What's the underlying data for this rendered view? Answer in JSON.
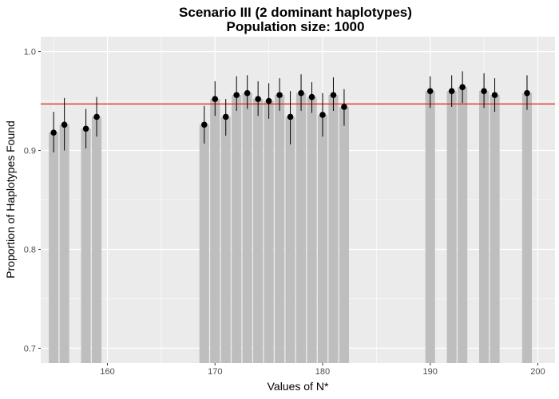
{
  "chart_data": {
    "type": "bar",
    "title": "Scenario III (2 dominant haplotypes)",
    "subtitle": "Population size: 1000",
    "xlabel": "Values of N*",
    "ylabel": "Proportion of Haplotypes Found",
    "xlim": [
      153.8,
      201.6
    ],
    "ylim": [
      0.685,
      1.015
    ],
    "xticks": [
      160,
      170,
      180,
      190,
      200
    ],
    "xtick_labels": [
      "160",
      "170",
      "180",
      "190",
      "200"
    ],
    "yticks": [
      0.7,
      0.8,
      0.9,
      1.0
    ],
    "ytick_labels": [
      "0.7",
      "0.8",
      "0.9",
      "1.0"
    ],
    "reference_line": {
      "y": 0.947,
      "color": "#e8251e"
    },
    "grid": true,
    "colors": {
      "panel": "#ebebeb",
      "grid": "#ffffff",
      "bar": "#bebebe",
      "point": "#000000"
    },
    "x": [
      155,
      156,
      158,
      159,
      169,
      170,
      171,
      172,
      173,
      174,
      175,
      176,
      177,
      178,
      179,
      180,
      181,
      182,
      190,
      192,
      193,
      195,
      196,
      199
    ],
    "values": [
      0.918,
      0.926,
      0.922,
      0.934,
      0.926,
      0.952,
      0.934,
      0.956,
      0.958,
      0.952,
      0.95,
      0.956,
      0.934,
      0.958,
      0.954,
      0.936,
      0.956,
      0.944,
      0.96,
      0.96,
      0.964,
      0.96,
      0.956,
      0.958
    ],
    "lower": [
      0.898,
      0.9,
      0.902,
      0.914,
      0.907,
      0.935,
      0.915,
      0.94,
      0.942,
      0.935,
      0.932,
      0.94,
      0.906,
      0.94,
      0.938,
      0.914,
      0.94,
      0.925,
      0.943,
      0.944,
      0.948,
      0.943,
      0.939,
      0.941
    ],
    "upper": [
      0.939,
      0.953,
      0.942,
      0.954,
      0.945,
      0.97,
      0.952,
      0.975,
      0.976,
      0.97,
      0.968,
      0.973,
      0.96,
      0.977,
      0.969,
      0.958,
      0.974,
      0.962,
      0.975,
      0.976,
      0.98,
      0.978,
      0.973,
      0.976
    ]
  }
}
